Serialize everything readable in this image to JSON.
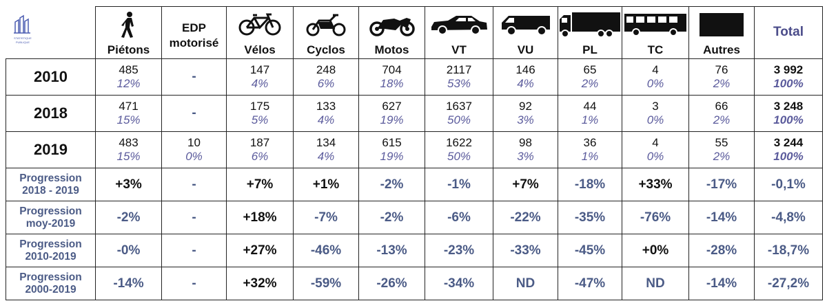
{
  "logo_caption": "STATISTIQUE PUBLIQUE",
  "columns": [
    {
      "label": "Piétons",
      "icon": "pedestrian-icon"
    },
    {
      "label": "EDP motorisé",
      "icon": ""
    },
    {
      "label": "Vélos",
      "icon": "bicycle-icon"
    },
    {
      "label": "Cyclos",
      "icon": "moped-icon"
    },
    {
      "label": "Motos",
      "icon": "motorcycle-icon"
    },
    {
      "label": "VT",
      "icon": "car-icon"
    },
    {
      "label": "VU",
      "icon": "van-icon"
    },
    {
      "label": "PL",
      "icon": "truck-icon"
    },
    {
      "label": "TC",
      "icon": "bus-icon"
    },
    {
      "label": "Autres",
      "icon": "black-box-icon"
    },
    {
      "label": "Total",
      "icon": ""
    }
  ],
  "years": [
    {
      "label": "2010",
      "values": [
        [
          "485",
          "12%"
        ],
        [
          "-",
          ""
        ],
        [
          "147",
          "4%"
        ],
        [
          "248",
          "6%"
        ],
        [
          "704",
          "18%"
        ],
        [
          "2117",
          "53%"
        ],
        [
          "146",
          "4%"
        ],
        [
          "65",
          "2%"
        ],
        [
          "4",
          "0%"
        ],
        [
          "76",
          "2%"
        ],
        [
          "3 992",
          "100%"
        ]
      ]
    },
    {
      "label": "2018",
      "values": [
        [
          "471",
          "15%"
        ],
        [
          "-",
          ""
        ],
        [
          "175",
          "5%"
        ],
        [
          "133",
          "4%"
        ],
        [
          "627",
          "19%"
        ],
        [
          "1637",
          "50%"
        ],
        [
          "92",
          "3%"
        ],
        [
          "44",
          "1%"
        ],
        [
          "3",
          "0%"
        ],
        [
          "66",
          "2%"
        ],
        [
          "3 248",
          "100%"
        ]
      ]
    },
    {
      "label": "2019",
      "values": [
        [
          "483",
          "15%"
        ],
        [
          "10",
          "0%"
        ],
        [
          "187",
          "6%"
        ],
        [
          "134",
          "4%"
        ],
        [
          "615",
          "19%"
        ],
        [
          "1622",
          "50%"
        ],
        [
          "98",
          "3%"
        ],
        [
          "36",
          "1%"
        ],
        [
          "4",
          "0%"
        ],
        [
          "55",
          "2%"
        ],
        [
          "3 244",
          "100%"
        ]
      ]
    }
  ],
  "progressions": [
    {
      "label_line1": "Progression",
      "label_line2": "2018 - 2019",
      "values": [
        "+3%",
        "-",
        "+7%",
        "+1%",
        "-2%",
        "-1%",
        "+7%",
        "-18%",
        "+33%",
        "-17%",
        "-0,1%"
      ]
    },
    {
      "label_line1": "Progression",
      "label_line2": "moy-2019",
      "values": [
        "-2%",
        "-",
        "+18%",
        "-7%",
        "-2%",
        "-6%",
        "-22%",
        "-35%",
        "-76%",
        "-14%",
        "-4,8%"
      ]
    },
    {
      "label_line1": "Progression",
      "label_line2": "2010-2019",
      "values": [
        "-0%",
        "-",
        "+27%",
        "-46%",
        "-13%",
        "-23%",
        "-33%",
        "-45%",
        "+0%",
        "-28%",
        "-18,7%"
      ]
    },
    {
      "label_line1": "Progression",
      "label_line2": "2000-2019",
      "values": [
        "-14%",
        "-",
        "+32%",
        "-59%",
        "-26%",
        "-34%",
        "ND",
        "-47%",
        "ND",
        "-14%",
        "-27,2%"
      ]
    }
  ]
}
